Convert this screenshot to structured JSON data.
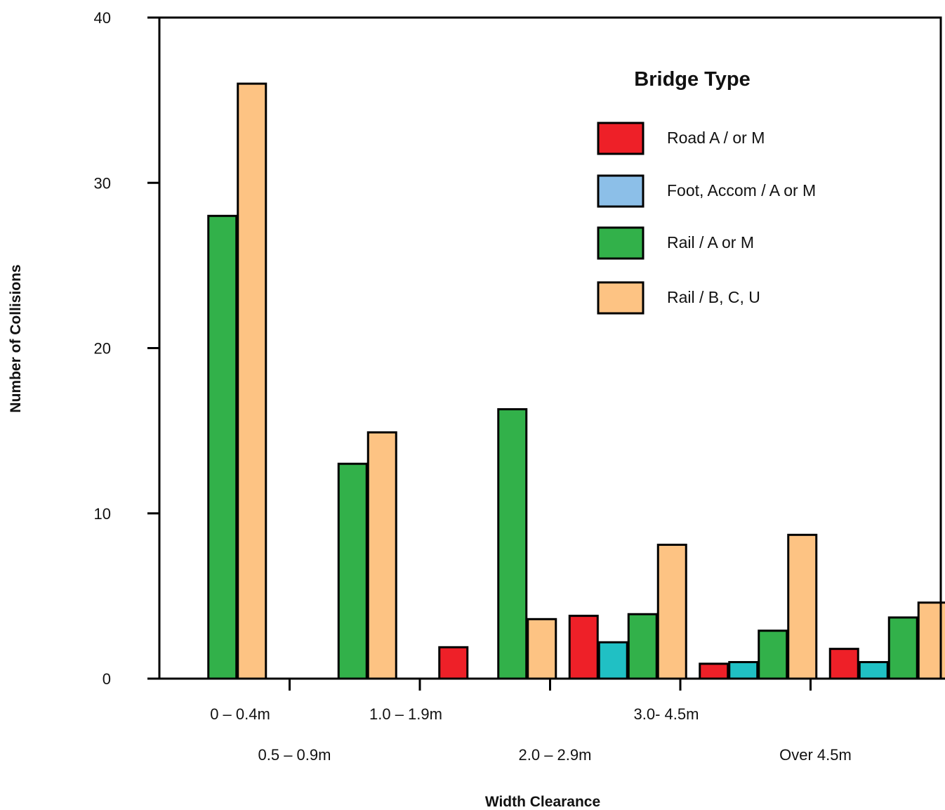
{
  "chart_data": {
    "type": "bar",
    "xlabel": "Width Clearance",
    "ylabel": "Number of Collisions",
    "ylim": [
      0,
      40
    ],
    "yticks": [
      0,
      10,
      20,
      30,
      40
    ],
    "grid": false,
    "legend": {
      "title": "Bridge Type",
      "placement": "top-right"
    },
    "categories": [
      "0 – 0.4m",
      "0.5 – 0.9m",
      "1.0 – 1.9m",
      "2.0 – 2.9m",
      "3.0- 4.5m",
      "Over 4.5m"
    ],
    "series": [
      {
        "name": "Road A / or M",
        "color": "#ee2028",
        "values": [
          0,
          0,
          1.9,
          3.8,
          0.9,
          1.8
        ]
      },
      {
        "name": "Foot, Accom / A or M",
        "color": "#8cbfe8",
        "bar_color": "#20c0c4",
        "values": [
          0,
          0,
          0,
          2.2,
          1.0,
          1.0
        ]
      },
      {
        "name": "Rail / A or M",
        "color": "#32b14a",
        "values": [
          28,
          13,
          16.3,
          3.9,
          2.9,
          3.7
        ]
      },
      {
        "name": "Rail / B, C, U",
        "color": "#fdc383",
        "values": [
          36,
          14.9,
          3.6,
          8.1,
          8.7,
          4.6
        ]
      }
    ]
  }
}
